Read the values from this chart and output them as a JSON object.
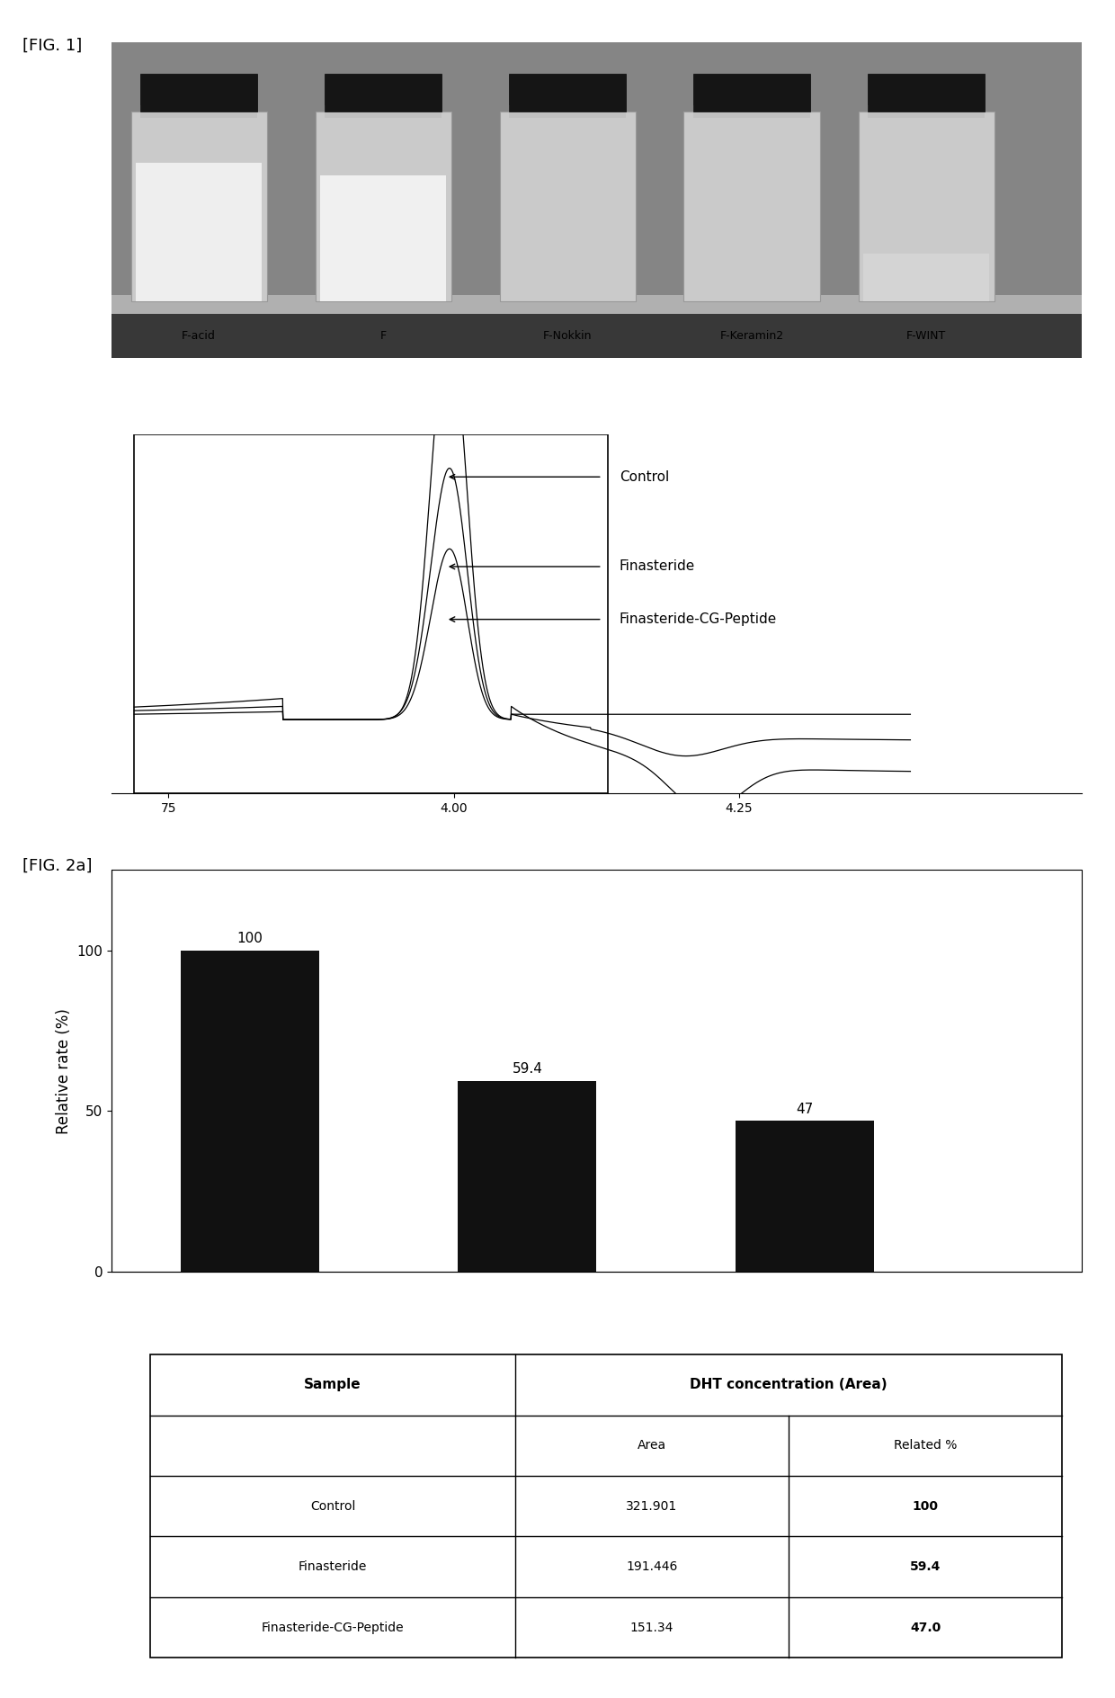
{
  "fig1_label": "[FIG. 1]",
  "fig2a_label": "[FIG. 2a]",
  "vial_labels": [
    "F-acid",
    "F",
    "F-Nokkin",
    "F-Keramin2",
    "F-WINT"
  ],
  "nmr_legend": [
    "Control",
    "Finasteride",
    "Finasteride-CG-Peptide"
  ],
  "nmr_xticklabels": [
    "75",
    "4.00",
    "4.25"
  ],
  "bar_values": [
    100,
    59.4,
    47
  ],
  "bar_labels": [
    "100",
    "59.4",
    "47"
  ],
  "bar_color": "#111111",
  "bar_ylabel": "Relative rate (%)",
  "bar_yticks": [
    0,
    50,
    100
  ],
  "bar_ylim": [
    0,
    125
  ],
  "table_header_col1": "Sample",
  "table_header_col2": "DHT concentration (Area)",
  "table_subheader_col2": "Area",
  "table_subheader_col3": "Related %",
  "table_rows": [
    [
      "Control",
      "321.901",
      "100"
    ],
    [
      "Finasteride",
      "191.446",
      "59.4"
    ],
    [
      "Finasteride-CG-Peptide",
      "151.34",
      "47.0"
    ]
  ],
  "photo_bg": "#909090",
  "photo_top_bg": "#707070",
  "photo_bottom_bg": "#505050",
  "vial_body_color": "#d8d8d8",
  "vial_cap_color": "#1a1a1a",
  "bg_color": "#ffffff"
}
